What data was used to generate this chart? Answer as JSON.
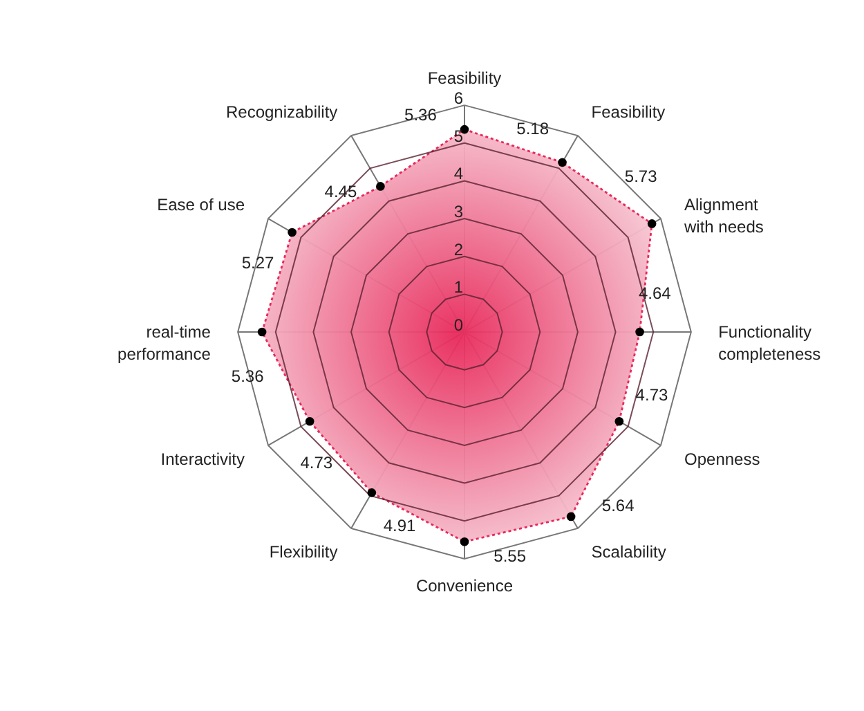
{
  "chart_data": {
    "type": "radar",
    "categories": [
      "Feasibility",
      "Feasibility",
      "Alignment with needs",
      "Functionality completeness",
      "Openness",
      "Scalability",
      "Convenience",
      "Flexibility",
      "Interactivity",
      "real-time performance",
      "Ease of use",
      "Recognizability"
    ],
    "series": [
      {
        "color": "#e8285a",
        "values": [
          5.36,
          5.18,
          5.73,
          4.64,
          4.73,
          5.64,
          5.55,
          4.91,
          4.73,
          5.36,
          5.27,
          4.45
        ]
      }
    ],
    "ylim": [
      0,
      6
    ],
    "yticks": [
      0,
      1,
      2,
      3,
      4,
      5,
      6
    ],
    "grid": true,
    "marker": "circle",
    "line_style": "dotted",
    "data_labels": true
  }
}
